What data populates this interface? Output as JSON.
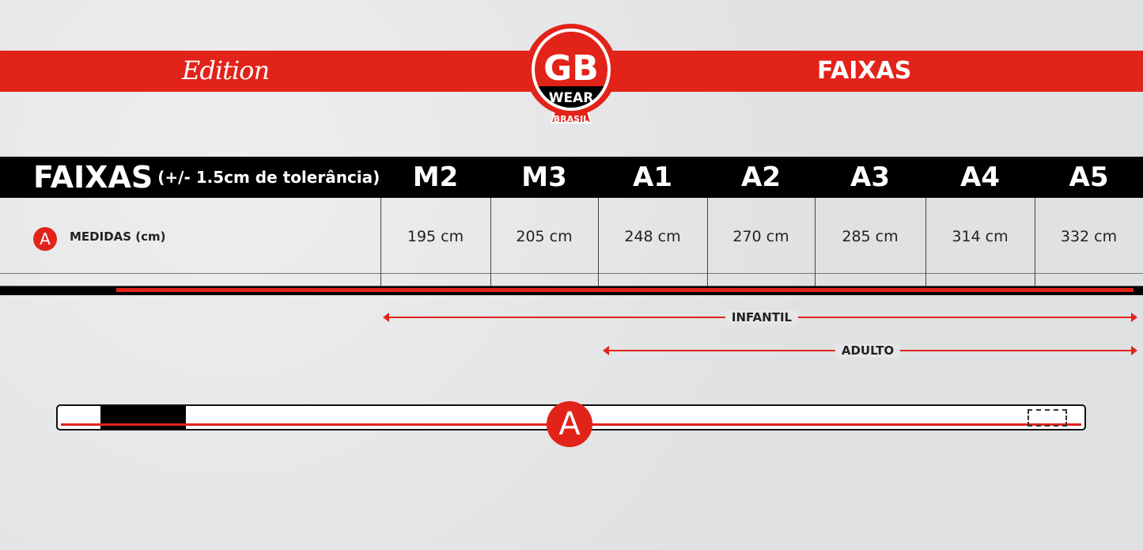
{
  "header": {
    "edition": "Edition",
    "title": "FAIXAS",
    "logo": {
      "main": "GB",
      "sub": "WEAR",
      "country": "BRASIL"
    }
  },
  "table": {
    "title": "FAIXAS",
    "subtitle": "(+/- 1.5cm de tolerância)",
    "columns": [
      "M2",
      "M3",
      "A1",
      "A2",
      "A3",
      "A4",
      "A5"
    ],
    "row": {
      "marker": "A",
      "label": "MEDIDAS (cm)",
      "values": [
        "195 cm",
        "205 cm",
        "248 cm",
        "270 cm",
        "285 cm",
        "314 cm",
        "332 cm"
      ]
    }
  },
  "ranges": {
    "infantil": "INFANTIL",
    "adulto": "ADULTO"
  },
  "diagram": {
    "marker": "A"
  },
  "colors": {
    "accent": "#e2231a",
    "dark": "#000000"
  }
}
